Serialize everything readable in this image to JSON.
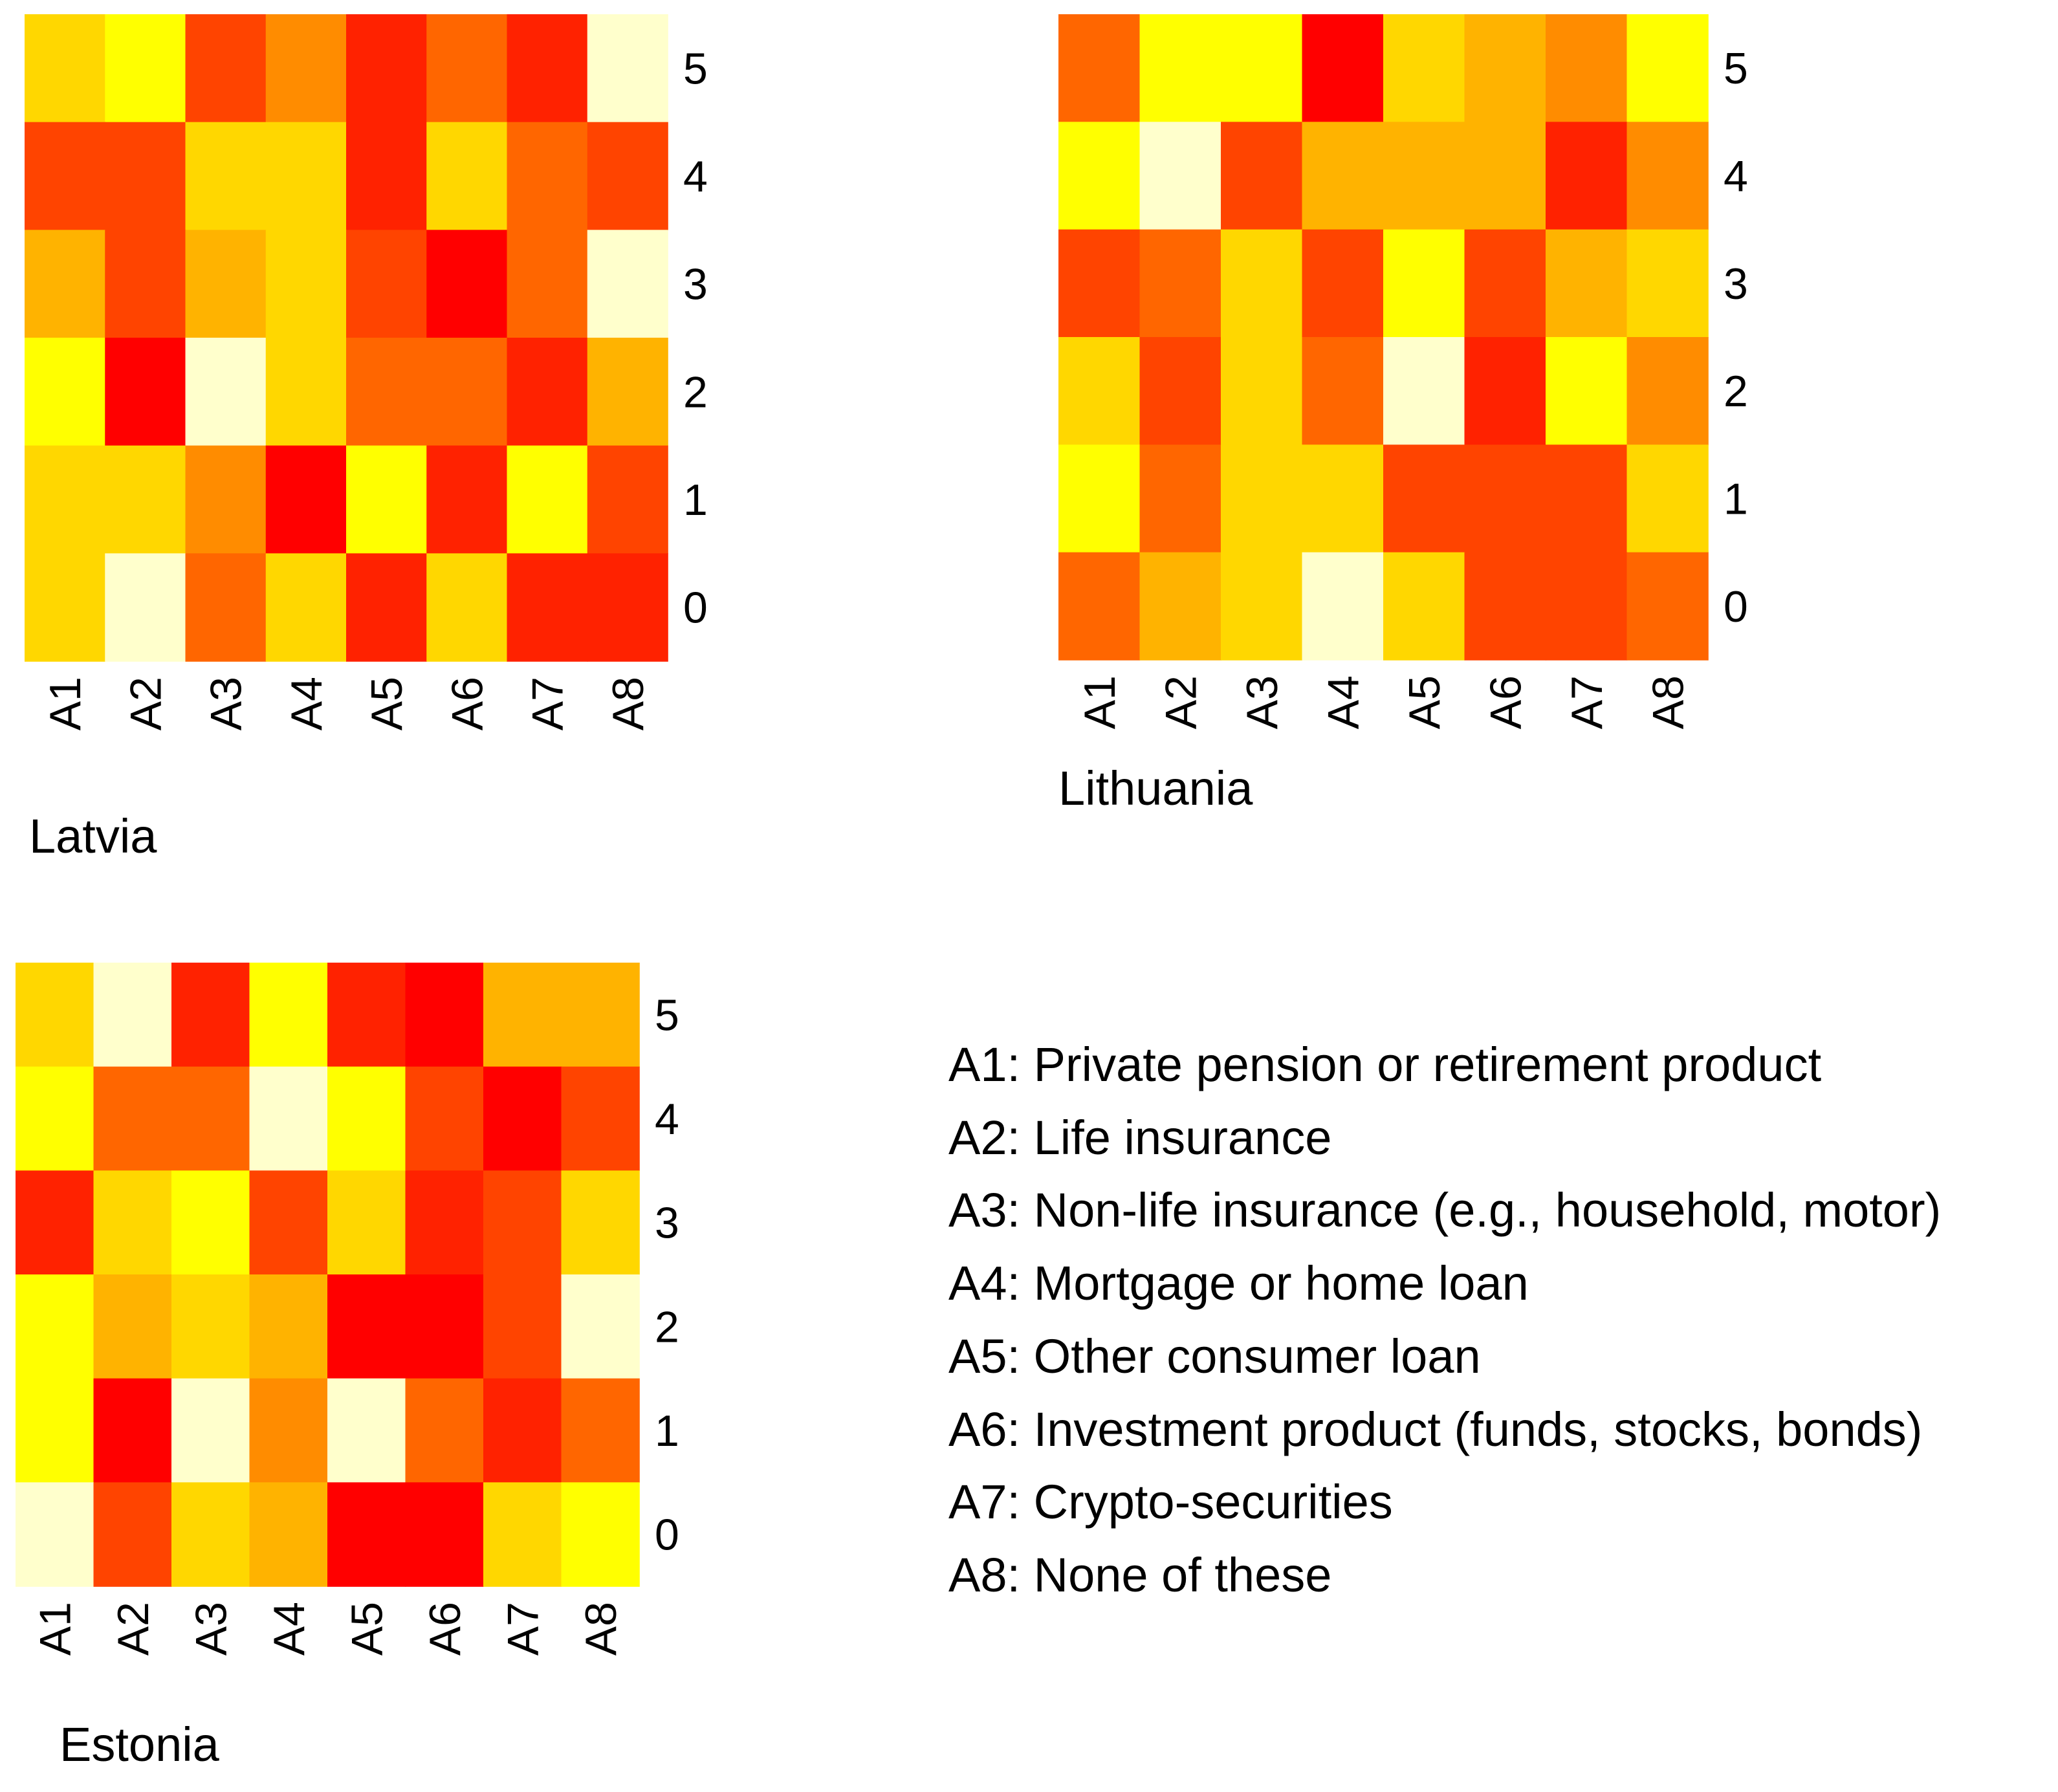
{
  "color_scale": [
    "#ffffcc",
    "#ffff00",
    "#ffd700",
    "#ffb300",
    "#ff8c00",
    "#ff6600",
    "#ff4400",
    "#ff2200",
    "#ff0000"
  ],
  "chart_data": [
    {
      "type": "heatmap",
      "title": "Latvia",
      "x": [
        "A1",
        "A2",
        "A3",
        "A4",
        "A5",
        "A6",
        "A7",
        "A8"
      ],
      "y": [
        "5",
        "4",
        "3",
        "2",
        "1",
        "0"
      ],
      "values": [
        [
          2,
          1,
          6,
          4,
          7,
          5,
          7,
          0
        ],
        [
          6,
          6,
          2,
          2,
          7,
          2,
          5,
          6
        ],
        [
          3,
          6,
          3,
          2,
          6,
          8,
          5,
          0
        ],
        [
          1,
          8,
          0,
          2,
          5,
          5,
          7,
          3
        ],
        [
          2,
          2,
          4,
          8,
          1,
          7,
          1,
          6
        ],
        [
          2,
          0,
          5,
          2,
          7,
          2,
          7,
          7
        ]
      ]
    },
    {
      "type": "heatmap",
      "title": "Lithuania",
      "x": [
        "A1",
        "A2",
        "A3",
        "A4",
        "A5",
        "A6",
        "A7",
        "A8"
      ],
      "y": [
        "5",
        "4",
        "3",
        "2",
        "1",
        "0"
      ],
      "values": [
        [
          5,
          1,
          1,
          8,
          2,
          3,
          4,
          1
        ],
        [
          1,
          0,
          6,
          3,
          3,
          3,
          7,
          4
        ],
        [
          6,
          5,
          2,
          6,
          1,
          6,
          3,
          2
        ],
        [
          2,
          6,
          2,
          5,
          0,
          7,
          1,
          4
        ],
        [
          1,
          5,
          2,
          2,
          6,
          6,
          6,
          2
        ],
        [
          5,
          3,
          2,
          0,
          2,
          6,
          6,
          5
        ]
      ]
    },
    {
      "type": "heatmap",
      "title": "Estonia",
      "x": [
        "A1",
        "A2",
        "A3",
        "A4",
        "A5",
        "A6",
        "A7",
        "A8"
      ],
      "y": [
        "5",
        "4",
        "3",
        "2",
        "1",
        "0"
      ],
      "values": [
        [
          2,
          0,
          7,
          1,
          7,
          8,
          3,
          3
        ],
        [
          1,
          5,
          5,
          0,
          1,
          6,
          8,
          6
        ],
        [
          7,
          2,
          1,
          6,
          2,
          7,
          6,
          2
        ],
        [
          1,
          3,
          2,
          3,
          8,
          8,
          6,
          0
        ],
        [
          1,
          8,
          0,
          4,
          0,
          5,
          7,
          5
        ],
        [
          0,
          6,
          2,
          3,
          8,
          8,
          2,
          1
        ]
      ]
    }
  ],
  "legend": [
    "A1: Private pension or retirement product",
    "A2: Life insurance",
    "A3: Non-life insurance (e.g., household, motor)",
    "A4: Mortgage or home loan",
    "A5: Other consumer loan",
    "A6: Investment product (funds, stocks, bonds)",
    "A7: Crypto-securities",
    "A8: None of these"
  ]
}
